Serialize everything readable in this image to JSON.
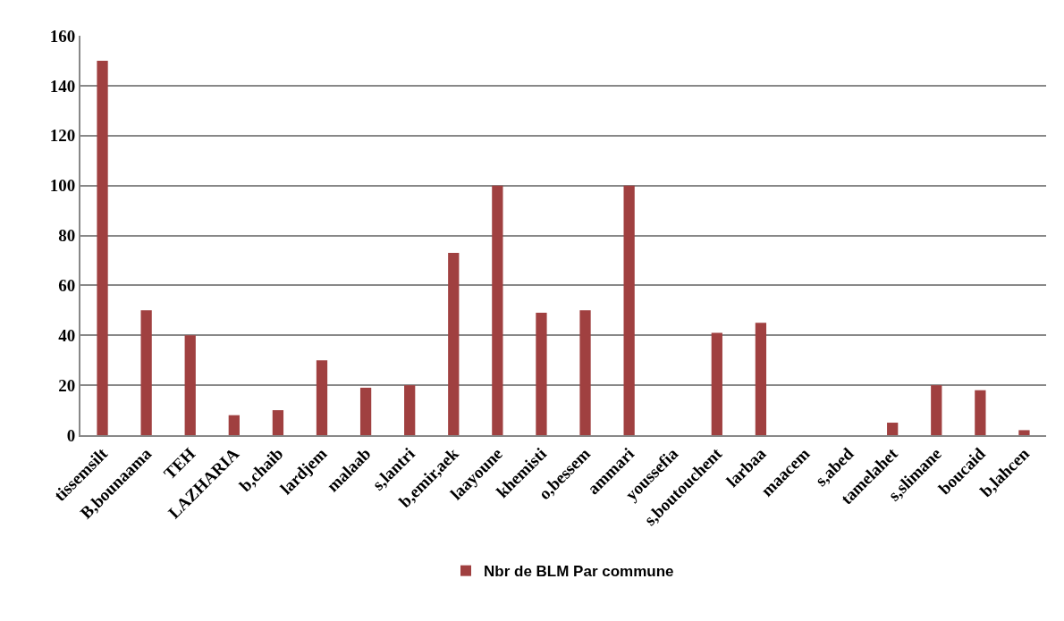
{
  "chart_data": {
    "type": "bar",
    "categories": [
      "tissemsilt",
      "B,bounaama",
      "TEH",
      "LAZHARIA",
      "b,chaib",
      "lardjem",
      "malaab",
      "s,lantri",
      "b,emir,aek",
      "laayoune",
      "khemisti",
      "o,bessem",
      "ammari",
      "youssefia",
      "s,boutouchent",
      "larbaa",
      "maacem",
      "s,abed",
      "tamelahet",
      "s,slimane",
      "boucaid",
      "b,lahcen"
    ],
    "series": [
      {
        "name": "Nbr de BLM Par commune",
        "color": "#a04040",
        "values": [
          150,
          50,
          40,
          8,
          10,
          30,
          19,
          20,
          73,
          100,
          49,
          50,
          100,
          0,
          41,
          45,
          0,
          0,
          5,
          20,
          18,
          2
        ]
      }
    ],
    "ylim": [
      0,
      160
    ],
    "yticks": [
      0,
      20,
      40,
      60,
      80,
      100,
      120,
      140,
      160
    ],
    "grid": "y",
    "legend": "bottom"
  }
}
